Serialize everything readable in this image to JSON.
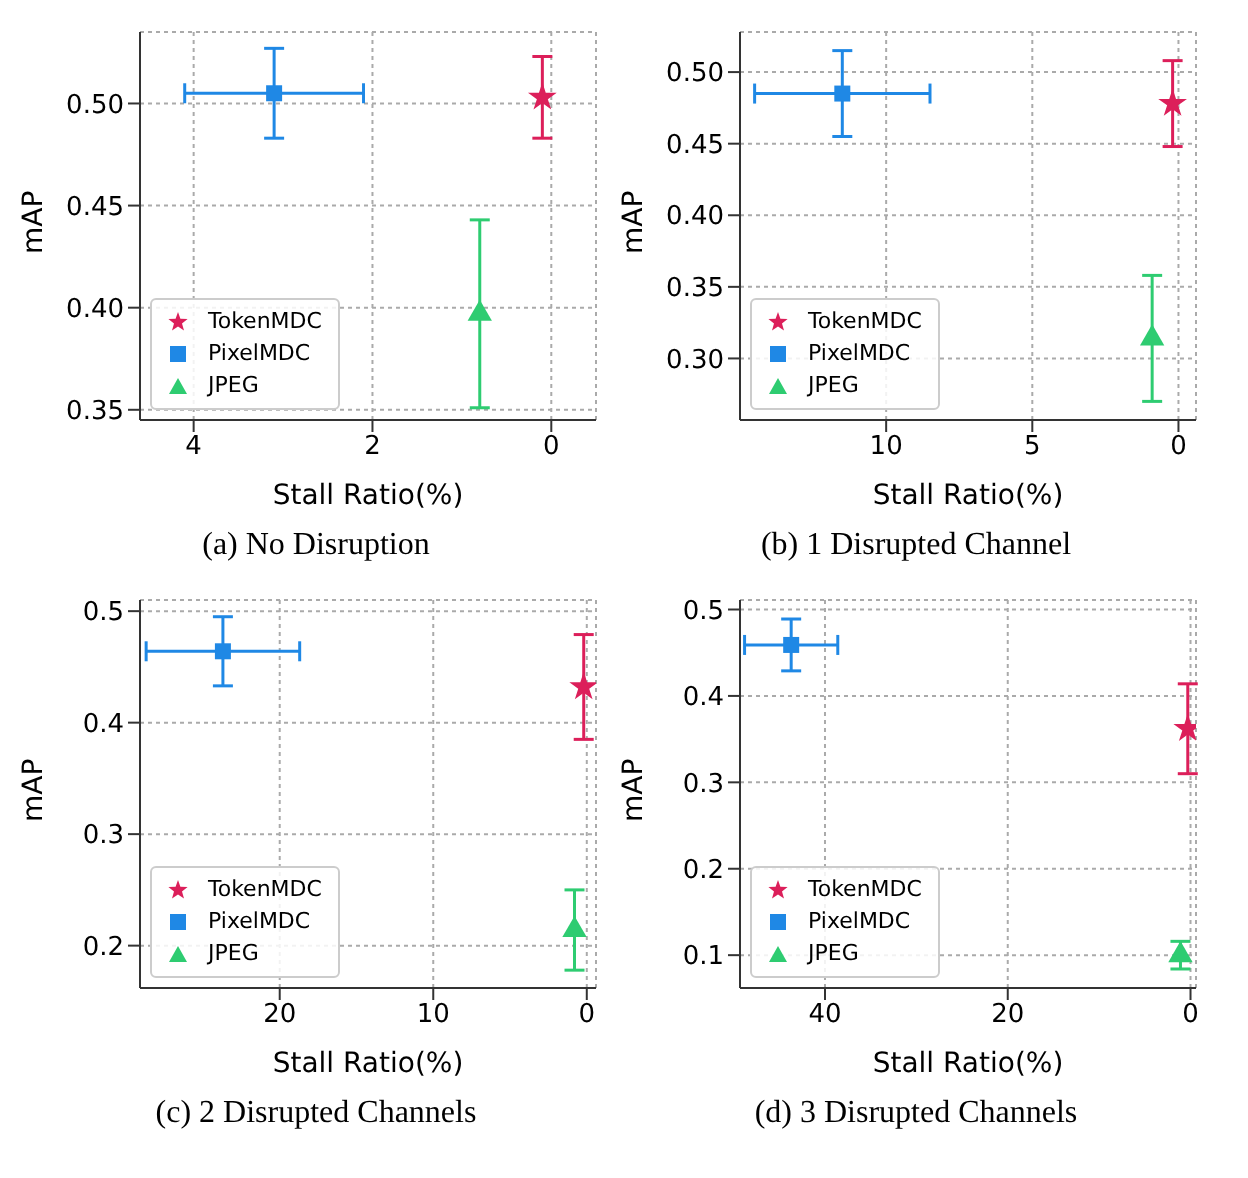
{
  "chart_data": [
    {
      "type": "scatter",
      "title": "(a) No Disruption",
      "xlabel": "Stall Ratio(%)",
      "ylabel": "mAP",
      "xlim": [
        4.6,
        -0.5
      ],
      "xticks": [
        4,
        2,
        0
      ],
      "ylim": [
        0.345,
        0.535
      ],
      "yticks": [
        {
          "value": 0.35,
          "label": "0.35"
        },
        {
          "value": 0.4,
          "label": "0.40"
        },
        {
          "value": 0.45,
          "label": "0.45"
        },
        {
          "value": 0.5,
          "label": "0.50"
        }
      ],
      "grid": true,
      "legend": "lower left",
      "series": [
        {
          "name": "TokenMDC",
          "color": "#dc1f5a",
          "marker": "star",
          "x": [
            0.1
          ],
          "values": [
            0.503
          ],
          "errors": [
            0.02
          ]
        },
        {
          "name": "PixelMDC",
          "color": "#1f88e5",
          "marker": "square",
          "x": [
            3.1
          ],
          "values": [
            0.505
          ],
          "errors": [
            0.022
          ],
          "xerrors": [
            1.0
          ]
        },
        {
          "name": "JPEG",
          "color": "#2ecc71",
          "marker": "triangle",
          "x": [
            0.8
          ],
          "values": [
            0.397
          ],
          "errors": [
            0.046
          ]
        }
      ]
    },
    {
      "type": "scatter",
      "title": "(b) 1 Disrupted Channel",
      "xlabel": "Stall Ratio(%)",
      "ylabel": "mAP",
      "xlim": [
        15,
        -0.6
      ],
      "xticks": [
        10,
        5,
        0
      ],
      "ylim": [
        0.257,
        0.528
      ],
      "yticks": [
        {
          "value": 0.3,
          "label": "0.30"
        },
        {
          "value": 0.35,
          "label": "0.35"
        },
        {
          "value": 0.4,
          "label": "0.40"
        },
        {
          "value": 0.45,
          "label": "0.45"
        },
        {
          "value": 0.5,
          "label": "0.50"
        }
      ],
      "grid": true,
      "legend": "lower left",
      "series": [
        {
          "name": "TokenMDC",
          "color": "#dc1f5a",
          "marker": "star",
          "x": [
            0.2
          ],
          "values": [
            0.478
          ],
          "errors": [
            0.03
          ]
        },
        {
          "name": "PixelMDC",
          "color": "#1f88e5",
          "marker": "square",
          "x": [
            11.5
          ],
          "values": [
            0.485
          ],
          "errors": [
            0.03
          ],
          "xerrors": [
            3.0
          ]
        },
        {
          "name": "JPEG",
          "color": "#2ecc71",
          "marker": "triangle",
          "x": [
            0.9
          ],
          "values": [
            0.314
          ],
          "errors": [
            0.044
          ]
        }
      ]
    },
    {
      "type": "scatter",
      "title": "(c) 2 Disrupted Channels",
      "xlabel": "Stall Ratio(%)",
      "ylabel": "mAP",
      "xlim": [
        29.1,
        -0.6
      ],
      "xticks": [
        20,
        10,
        0
      ],
      "ylim": [
        0.162,
        0.51
      ],
      "yticks": [
        0.2,
        0.3,
        0.4,
        0.5
      ],
      "grid": true,
      "legend": "lower left",
      "series": [
        {
          "name": "TokenMDC",
          "color": "#dc1f5a",
          "marker": "star",
          "x": [
            0.2
          ],
          "values": [
            0.432
          ],
          "errors": [
            0.047
          ]
        },
        {
          "name": "PixelMDC",
          "color": "#1f88e5",
          "marker": "square",
          "x": [
            23.7
          ],
          "values": [
            0.464
          ],
          "errors": [
            0.031
          ],
          "xerrors": [
            5.0
          ]
        },
        {
          "name": "JPEG",
          "color": "#2ecc71",
          "marker": "triangle",
          "x": [
            0.8
          ],
          "values": [
            0.214
          ],
          "errors": [
            0.036
          ]
        }
      ]
    },
    {
      "type": "scatter",
      "title": "(d) 3 Disrupted Channels",
      "xlabel": "Stall Ratio(%)",
      "ylabel": "mAP",
      "xlim": [
        49.3,
        -0.6
      ],
      "xticks": [
        40,
        20,
        0
      ],
      "ylim": [
        0.062,
        0.511
      ],
      "yticks": [
        0.1,
        0.2,
        0.3,
        0.4,
        0.5
      ],
      "grid": true,
      "legend": "lower left",
      "series": [
        {
          "name": "TokenMDC",
          "color": "#dc1f5a",
          "marker": "star",
          "x": [
            0.3
          ],
          "values": [
            0.362
          ],
          "errors": [
            0.052
          ]
        },
        {
          "name": "PixelMDC",
          "color": "#1f88e5",
          "marker": "square",
          "x": [
            43.7
          ],
          "values": [
            0.459
          ],
          "errors": [
            0.03
          ],
          "xerrors": [
            5.1
          ]
        },
        {
          "name": "JPEG",
          "color": "#2ecc71",
          "marker": "triangle",
          "x": [
            1.1
          ],
          "values": [
            0.1
          ],
          "errors": [
            0.016
          ]
        }
      ]
    }
  ]
}
